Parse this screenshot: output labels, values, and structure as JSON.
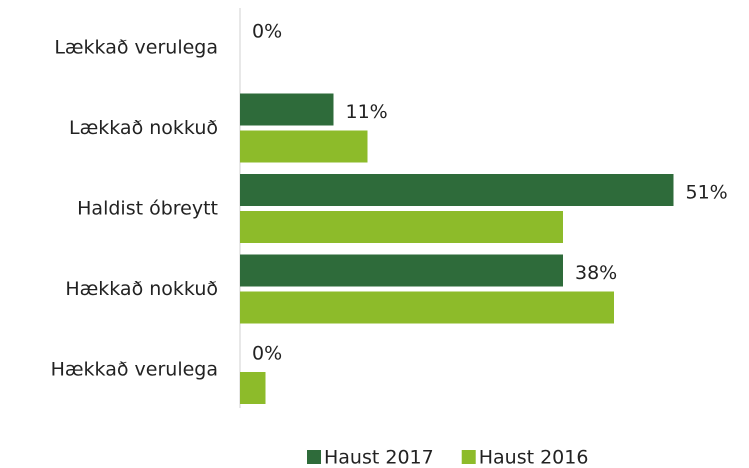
{
  "chart_data": {
    "type": "bar",
    "orientation": "horizontal",
    "categories": [
      "Lækkað verulega",
      "Lækkað nokkuð",
      "Haldist óbreytt",
      "Hækkað nokkuð",
      "Hækkað verulega"
    ],
    "series": [
      {
        "name": "Haust 2017",
        "color": "#2e6b3a",
        "values": [
          0,
          11,
          51,
          38,
          0
        ],
        "value_labels": [
          "0%",
          "11%",
          "51%",
          "38%",
          "0%"
        ]
      },
      {
        "name": "Haust 2016",
        "color": "#8dbb2a",
        "values": [
          0,
          15,
          38,
          44,
          3
        ]
      }
    ],
    "xlim": [
      0,
      60
    ],
    "legend": "bottom"
  }
}
